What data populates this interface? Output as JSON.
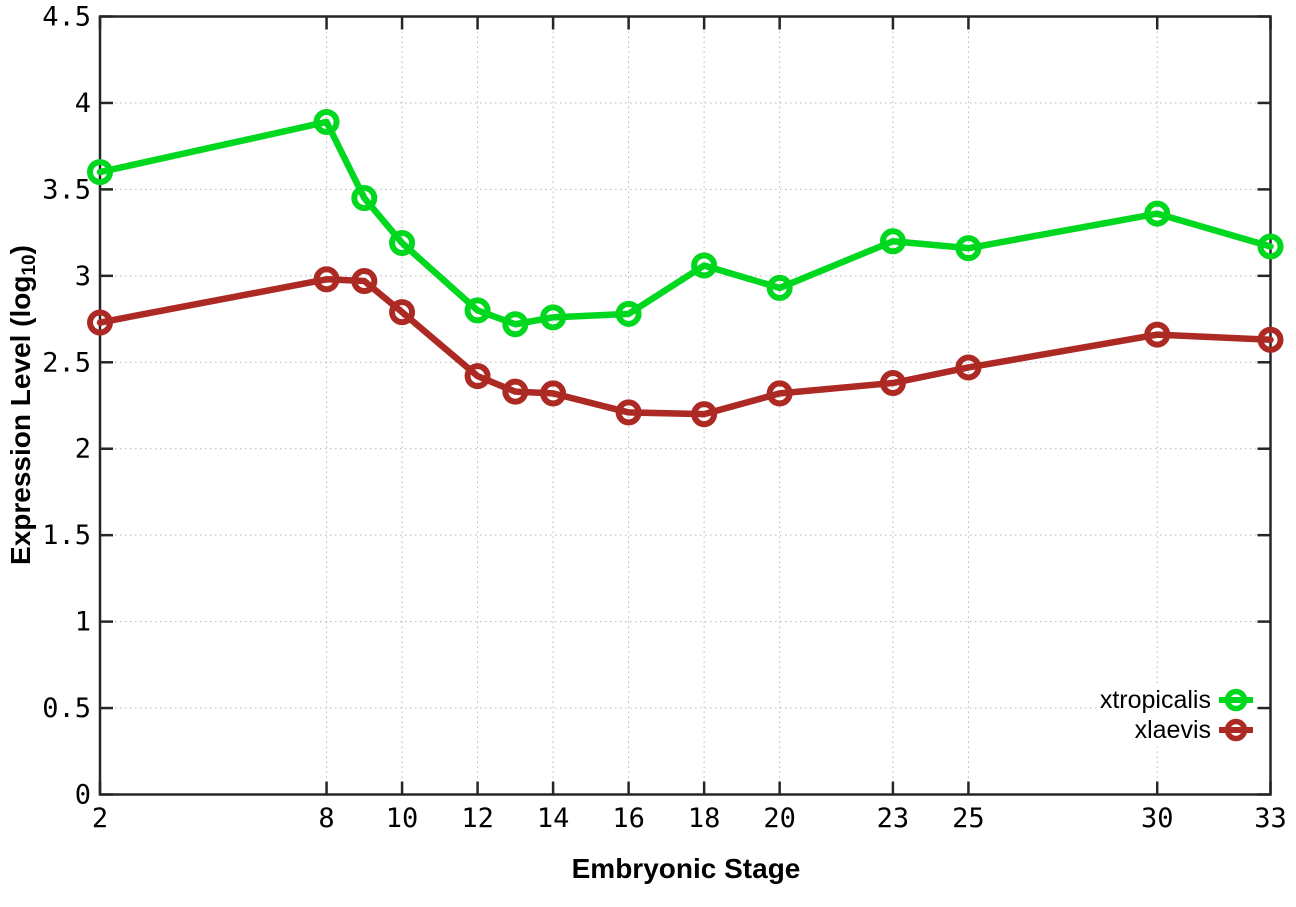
{
  "chart_data": {
    "type": "line",
    "title": "",
    "xlabel": "Embryonic Stage",
    "ylabel": "Expression Level (log10)",
    "ylabel_parts": {
      "main": "Expression Level (log",
      "sub": "10",
      "close": ")"
    },
    "xlim": [
      2,
      33
    ],
    "ylim": [
      0,
      4.5
    ],
    "x_ticks": [
      2,
      8,
      10,
      12,
      14,
      16,
      18,
      20,
      23,
      25,
      30,
      33
    ],
    "y_ticks": [
      0,
      0.5,
      1,
      1.5,
      2,
      2.5,
      3,
      3.5,
      4,
      4.5
    ],
    "y_tick_labels": [
      "0",
      "0.5",
      "1",
      "1.5",
      "2",
      "2.5",
      "3",
      "3.5",
      "4",
      "4.5"
    ],
    "grid": true,
    "grid_style": "dotted",
    "legend_position": "bottom-right",
    "marker": "open-circle",
    "x": [
      2,
      8,
      9,
      10,
      12,
      13,
      14,
      16,
      18,
      20,
      23,
      25,
      30,
      33
    ],
    "series": [
      {
        "name": "xtropicalis",
        "color": "#00d71f",
        "values": [
          3.6,
          3.89,
          3.45,
          3.19,
          2.8,
          2.72,
          2.76,
          2.78,
          3.06,
          2.93,
          3.2,
          3.16,
          3.36,
          3.17
        ]
      },
      {
        "name": "xlaevis",
        "color": "#ad2a24",
        "values": [
          2.73,
          2.98,
          2.97,
          2.79,
          2.42,
          2.33,
          2.32,
          2.21,
          2.2,
          2.32,
          2.38,
          2.47,
          2.66,
          2.63
        ]
      }
    ],
    "colors": {
      "axis": "#262626",
      "grid": "#b5b5b5",
      "text": "#000000"
    }
  }
}
